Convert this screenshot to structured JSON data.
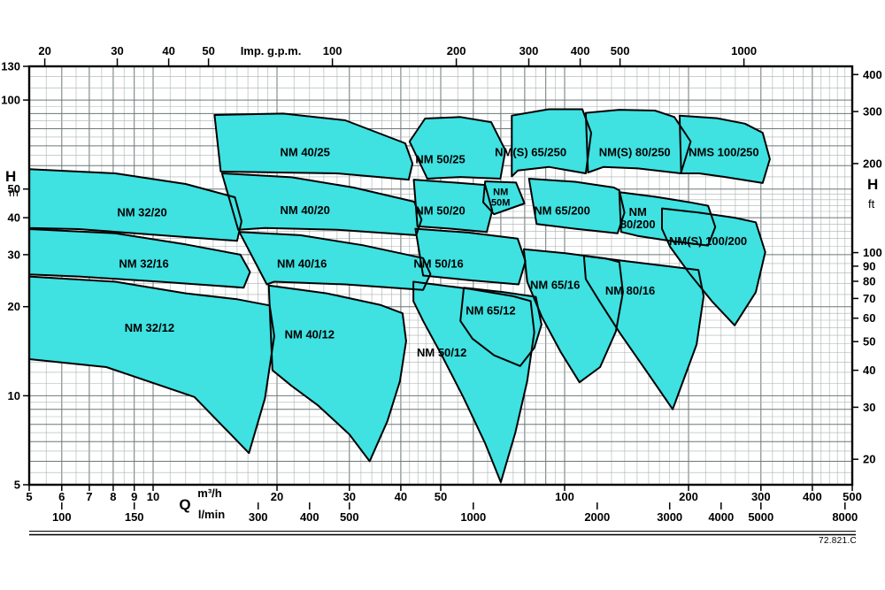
{
  "window": {
    "background": "#ffffff"
  },
  "chart_data": {
    "type": "area",
    "subtype": "pump-coverage-selection-chart",
    "title": "",
    "code_label": "72.821.C",
    "axes": {
      "q_range": [
        5,
        500
      ],
      "h_range": [
        5,
        130
      ],
      "top": {
        "label": "Imp. g.p.m.",
        "ticks": [
          20,
          30,
          40,
          50,
          100,
          200,
          300,
          400,
          500,
          1000
        ],
        "m3h_per_unit": 0.2727655
      },
      "bottom_m3h": {
        "unit": "m³/h",
        "ticks": [
          5,
          6,
          7,
          8,
          9,
          10,
          20,
          30,
          40,
          50,
          100,
          200,
          300,
          400,
          500
        ]
      },
      "bottom_lmin": {
        "unit": "l/min",
        "ticks": [
          100,
          150,
          300,
          400,
          500,
          1000,
          2000,
          3000,
          4000,
          5000,
          8000
        ],
        "m3h_per_unit": 0.06
      },
      "flow_symbol": "Q",
      "left": {
        "symbol": "H",
        "unit": "m",
        "ticks": [
          130,
          100,
          50,
          40,
          30,
          20,
          10,
          5
        ]
      },
      "right": {
        "symbol": "H",
        "unit": "ft",
        "ticks": [
          400,
          300,
          200,
          100,
          90,
          80,
          70,
          60,
          50,
          40,
          30,
          20
        ],
        "m_per_unit": 0.3048
      }
    },
    "style": {
      "region_fill": "#3fe1e1",
      "region_stroke": "#000000",
      "grid_minor": "#a9b1b1",
      "grid_major": "#6d7777",
      "border": "#000000"
    },
    "regions": [
      {
        "name": "NM 32/20",
        "label_lines": [
          "NM 32/20"
        ],
        "label_at": [
          9.4,
          41.7
        ],
        "points": [
          [
            5,
            58.4
          ],
          [
            8.1,
            56.5
          ],
          [
            12,
            52
          ],
          [
            15.8,
            46.9
          ],
          [
            16.4,
            38.9
          ],
          [
            16,
            33.4
          ],
          [
            10.4,
            34.9
          ],
          [
            6.6,
            36.6
          ],
          [
            5,
            36.9
          ]
        ]
      },
      {
        "name": "NM 32/16",
        "label_lines": [
          "NM 32/16"
        ],
        "label_at": [
          9.5,
          28
        ],
        "points": [
          [
            5,
            36.6
          ],
          [
            8.1,
            35.4
          ],
          [
            12,
            32.5
          ],
          [
            16.3,
            30
          ],
          [
            17.2,
            26.2
          ],
          [
            16.6,
            23.2
          ],
          [
            10.4,
            24.3
          ],
          [
            6.6,
            25.3
          ],
          [
            5,
            25.7
          ]
        ]
      },
      {
        "name": "NM 32/12",
        "label_lines": [
          "NM 32/12"
        ],
        "label_at": [
          9.8,
          17
        ],
        "points": [
          [
            5,
            25.3
          ],
          [
            8.1,
            24.3
          ],
          [
            12,
            22.2
          ],
          [
            16,
            21.2
          ],
          [
            19.2,
            20.2
          ],
          [
            19.7,
            15.9
          ],
          [
            18.7,
            9.8
          ],
          [
            17.1,
            6.4
          ],
          [
            12.6,
            9.9
          ],
          [
            7.7,
            12.5
          ],
          [
            5,
            13.3
          ]
        ]
      },
      {
        "name": "NM 40/25",
        "label_lines": [
          "NM 40/25"
        ],
        "label_at": [
          23.4,
          66.6
        ],
        "points": [
          [
            14.1,
            89
          ],
          [
            20.7,
            90
          ],
          [
            29.3,
            85.4
          ],
          [
            41,
            71.4
          ],
          [
            42.7,
            61
          ],
          [
            41.8,
            53.8
          ],
          [
            28,
            56.5
          ],
          [
            18.7,
            57
          ],
          [
            14.6,
            57.3
          ]
        ]
      },
      {
        "name": "NM 40/20",
        "label_lines": [
          "NM 40/20"
        ],
        "label_at": [
          23.4,
          42.5
        ],
        "points": [
          [
            14.7,
            56.5
          ],
          [
            21.7,
            54.8
          ],
          [
            30.7,
            50.6
          ],
          [
            43.1,
            45.3
          ],
          [
            44.9,
            39.4
          ],
          [
            43.6,
            34.9
          ],
          [
            28,
            36.4
          ],
          [
            18.7,
            36.9
          ],
          [
            16.1,
            36.4
          ]
        ]
      },
      {
        "name": "NM 40/16",
        "label_lines": [
          "NM 40/16"
        ],
        "label_at": [
          23,
          28
        ],
        "points": [
          [
            16.2,
            35.8
          ],
          [
            22.8,
            34.9
          ],
          [
            32.3,
            32.3
          ],
          [
            45.3,
            29.2
          ],
          [
            47.2,
            25.8
          ],
          [
            45.3,
            22.8
          ],
          [
            29.3,
            23.8
          ],
          [
            19.7,
            24.3
          ],
          [
            18.9,
            23.8
          ]
        ]
      },
      {
        "name": "NM 40/12",
        "label_lines": [
          "NM 40/12"
        ],
        "label_at": [
          24,
          16.1
        ],
        "points": [
          [
            19.1,
            23.6
          ],
          [
            26.4,
            22.2
          ],
          [
            35.6,
            20.3
          ],
          [
            40.4,
            19
          ],
          [
            41.2,
            15.3
          ],
          [
            39.8,
            11.2
          ],
          [
            37.1,
            8.2
          ],
          [
            33.6,
            6
          ],
          [
            30,
            7.4
          ],
          [
            25.1,
            9.3
          ],
          [
            21.7,
            10.8
          ],
          [
            19.5,
            12.2
          ]
        ]
      },
      {
        "name": "NM 50/25",
        "label_lines": [
          "NM 50/25"
        ],
        "label_at": [
          49.9,
          63.1
        ],
        "points": [
          [
            42,
            72.4
          ],
          [
            45.8,
            86.6
          ],
          [
            55.8,
            87.6
          ],
          [
            66.3,
            84.2
          ],
          [
            71.8,
            67.5
          ],
          [
            69.8,
            54.2
          ],
          [
            55.8,
            54.9
          ],
          [
            46.4,
            54.2
          ]
        ]
      },
      {
        "name": "NM 50M",
        "label_lines": [
          "NM",
          "50M"
        ],
        "label_size": 11,
        "label_at": [
          69.9,
          47
        ],
        "points": [
          [
            64.1,
            53.1
          ],
          [
            76.2,
            52.6
          ],
          [
            79.9,
            44.7
          ],
          [
            67.4,
            41.1
          ],
          [
            63.4,
            45.1
          ]
        ]
      },
      {
        "name": "NM 50/20",
        "label_lines": [
          "NM 50/20"
        ],
        "label_at": [
          49.9,
          42.3
        ],
        "points": [
          [
            43,
            53.8
          ],
          [
            55.8,
            52.4
          ],
          [
            64.1,
            51.6
          ],
          [
            66.7,
            42.3
          ],
          [
            64.7,
            35.8
          ],
          [
            53.1,
            36.7
          ],
          [
            43.9,
            37.4
          ]
        ]
      },
      {
        "name": "NM 50/16",
        "label_lines": [
          "NM 50/16"
        ],
        "label_at": [
          49.4,
          28
        ],
        "points": [
          [
            43.4,
            36.7
          ],
          [
            58.6,
            35.6
          ],
          [
            76.9,
            34
          ],
          [
            80.3,
            28.5
          ],
          [
            77.3,
            23.8
          ],
          [
            58.6,
            24.6
          ],
          [
            45.3,
            25.5
          ]
        ]
      },
      {
        "name": "NM 50/12",
        "label_lines": [
          "NM 50/12"
        ],
        "label_at": [
          50.3,
          14
        ],
        "points": [
          [
            42.9,
            24.3
          ],
          [
            58.6,
            23
          ],
          [
            75,
            21.7
          ],
          [
            82.7,
            20.9
          ],
          [
            84.4,
            16.4
          ],
          [
            81.1,
            11.2
          ],
          [
            75.9,
            7.5
          ],
          [
            70,
            5.1
          ],
          [
            64.1,
            6.9
          ],
          [
            56.7,
            9.9
          ],
          [
            50.3,
            13.7
          ],
          [
            45.3,
            17.9
          ],
          [
            42.9,
            20.9
          ]
        ]
      },
      {
        "name": "NM(S) 65/250",
        "label_lines": [
          "NM(S) 65/250"
        ],
        "label_at": [
          82.7,
          66.6
        ],
        "points": [
          [
            74.4,
            88.6
          ],
          [
            91.5,
            93.1
          ],
          [
            110.4,
            93.1
          ],
          [
            116,
            77.5
          ],
          [
            112.6,
            56.5
          ],
          [
            91.5,
            59.4
          ],
          [
            77,
            57.8
          ],
          [
            74.4,
            55.2
          ]
        ]
      },
      {
        "name": "NM 65/200",
        "label_lines": [
          "NM 65/200"
        ],
        "label_at": [
          98.6,
          42.3
        ],
        "points": [
          [
            81.9,
            54.2
          ],
          [
            106.1,
            52.9
          ],
          [
            131.8,
            50.6
          ],
          [
            135.8,
            49.5
          ],
          [
            139.8,
            41.6
          ],
          [
            134.5,
            35.4
          ],
          [
            106.1,
            36.7
          ],
          [
            85.5,
            38.1
          ]
        ]
      },
      {
        "name": "NM 65/16",
        "label_lines": [
          "NM 65/16"
        ],
        "label_at": [
          94.8,
          23.7
        ],
        "points": [
          [
            79.6,
            31.3
          ],
          [
            100.9,
            30.3
          ],
          [
            126.1,
            29.1
          ],
          [
            135.8,
            28.3
          ],
          [
            138.6,
            22.4
          ],
          [
            133.2,
            16.5
          ],
          [
            122,
            12.5
          ],
          [
            108.7,
            11.1
          ],
          [
            98,
            14
          ],
          [
            88,
            18.5
          ],
          [
            81.1,
            24.3
          ]
        ]
      },
      {
        "name": "NM 65/12",
        "label_lines": [
          "NM 65/12"
        ],
        "label_at": [
          66.1,
          19.4
        ],
        "points": [
          [
            56.9,
            23.2
          ],
          [
            71.1,
            22.4
          ],
          [
            85.1,
            21.6
          ],
          [
            87.9,
            17.4
          ],
          [
            84.4,
            14.5
          ],
          [
            78,
            12.6
          ],
          [
            67.4,
            13.7
          ],
          [
            59.7,
            15.6
          ],
          [
            55.8,
            17.9
          ]
        ]
      },
      {
        "name": "NM(S) 80/250",
        "label_lines": [
          "NM(S) 80/250"
        ],
        "label_at": [
          148,
          66.6
        ],
        "points": [
          [
            112.6,
            90.5
          ],
          [
            135.8,
            92.7
          ],
          [
            165.7,
            92.1
          ],
          [
            184.8,
            87.6
          ],
          [
            202.4,
            72.4
          ],
          [
            191.6,
            56.5
          ],
          [
            150.6,
            58.7
          ],
          [
            124.4,
            59.4
          ],
          [
            114,
            56.9
          ]
        ]
      },
      {
        "name": "NM 80/200",
        "label_lines": [
          "NM",
          "80/200"
        ],
        "label_at": [
          150.6,
          40
        ],
        "points": [
          [
            135.8,
            48.8
          ],
          [
            165.7,
            47.1
          ],
          [
            201.5,
            45.1
          ],
          [
            223.2,
            43.9
          ],
          [
            232.3,
            37.2
          ],
          [
            223.2,
            32.2
          ],
          [
            183.1,
            33.3
          ],
          [
            150.6,
            34.7
          ],
          [
            137.2,
            35.8
          ]
        ]
      },
      {
        "name": "NM 80/16",
        "label_lines": [
          "NM 80/16"
        ],
        "label_at": [
          144.3,
          22.7
        ],
        "points": [
          [
            111.4,
            29.7
          ],
          [
            141,
            28.5
          ],
          [
            183.1,
            27.3
          ],
          [
            211.4,
            26.6
          ],
          [
            217.7,
            21.7
          ],
          [
            209.3,
            14.9
          ],
          [
            183.1,
            9
          ],
          [
            158.1,
            12.1
          ],
          [
            135.8,
            16.4
          ],
          [
            121.5,
            20.9
          ],
          [
            112.6,
            24.8
          ]
        ]
      },
      {
        "name": "NMS 100/250",
        "label_lines": [
          "NMS 100/250"
        ],
        "label_at": [
          243.8,
          66.6
        ],
        "points": [
          [
            190.3,
            88.6
          ],
          [
            234.4,
            86.8
          ],
          [
            274.4,
            83.2
          ],
          [
            303,
            77.5
          ],
          [
            315.4,
            63.1
          ],
          [
            303,
            52.4
          ],
          [
            245.6,
            54.9
          ],
          [
            212.3,
            56.5
          ],
          [
            192,
            56.5
          ]
        ]
      },
      {
        "name": "NM(S) 100/200",
        "label_lines": [
          "NM(S) 100/200"
        ],
        "label_at": [
          223.2,
          33.4
        ],
        "points": [
          [
            172.4,
            43
          ],
          [
            212.3,
            41.6
          ],
          [
            258.9,
            40
          ],
          [
            291.4,
            38.6
          ],
          [
            307.3,
            30.6
          ],
          [
            291.4,
            22.4
          ],
          [
            258.9,
            17.3
          ],
          [
            227.9,
            20.9
          ],
          [
            201.5,
            25.8
          ],
          [
            180.5,
            31.9
          ],
          [
            172.4,
            36.7
          ]
        ]
      }
    ]
  }
}
